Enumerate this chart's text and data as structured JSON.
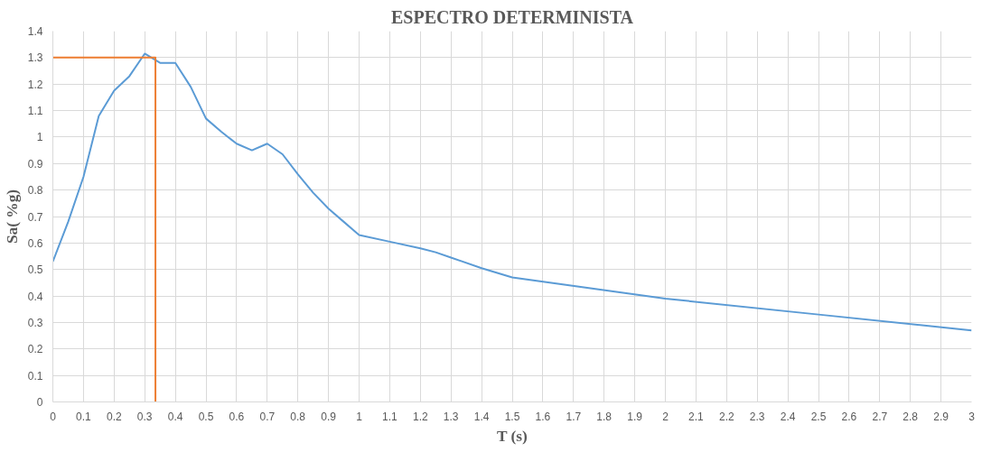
{
  "chart_data": {
    "type": "line",
    "title": "ESPECTRO DETERMINISTA",
    "xlabel": "T (s)",
    "ylabel": "Sa( %g)",
    "xlim": [
      0,
      3
    ],
    "ylim": [
      0,
      1.4
    ],
    "xticks": [
      0,
      0.1,
      0.2,
      0.3,
      0.4,
      0.5,
      0.6,
      0.7,
      0.8,
      0.9,
      1,
      1.1,
      1.2,
      1.3,
      1.4,
      1.5,
      1.6,
      1.7,
      1.8,
      1.9,
      2,
      2.1,
      2.2,
      2.3,
      2.4,
      2.5,
      2.6,
      2.7,
      2.8,
      2.9,
      3
    ],
    "yticks": [
      0,
      0.1,
      0.2,
      0.3,
      0.4,
      0.5,
      0.6,
      0.7,
      0.8,
      0.9,
      1,
      1.1,
      1.2,
      1.3,
      1.4
    ],
    "grid": true,
    "series": [
      {
        "color": "#5b9bd5",
        "x": [
          0,
          0.05,
          0.1,
          0.15,
          0.2,
          0.25,
          0.3,
          0.35,
          0.4,
          0.45,
          0.5,
          0.55,
          0.6,
          0.65,
          0.7,
          0.75,
          0.8,
          0.85,
          0.9,
          0.95,
          1,
          1.1,
          1.2,
          1.25,
          1.3,
          1.4,
          1.5,
          2,
          2.5,
          3
        ],
        "values": [
          0.53,
          0.68,
          0.85,
          1.08,
          1.175,
          1.23,
          1.315,
          1.28,
          1.28,
          1.19,
          1.07,
          1.02,
          0.975,
          0.95,
          0.975,
          0.935,
          0.86,
          0.79,
          0.73,
          0.68,
          0.63,
          0.605,
          0.58,
          0.565,
          0.545,
          0.505,
          0.47,
          0.39,
          0.33,
          0.27
        ]
      },
      {
        "color": "#ed7d31",
        "x": [
          0,
          0.335,
          0.335
        ],
        "values": [
          1.3,
          1.3,
          0
        ]
      }
    ]
  }
}
